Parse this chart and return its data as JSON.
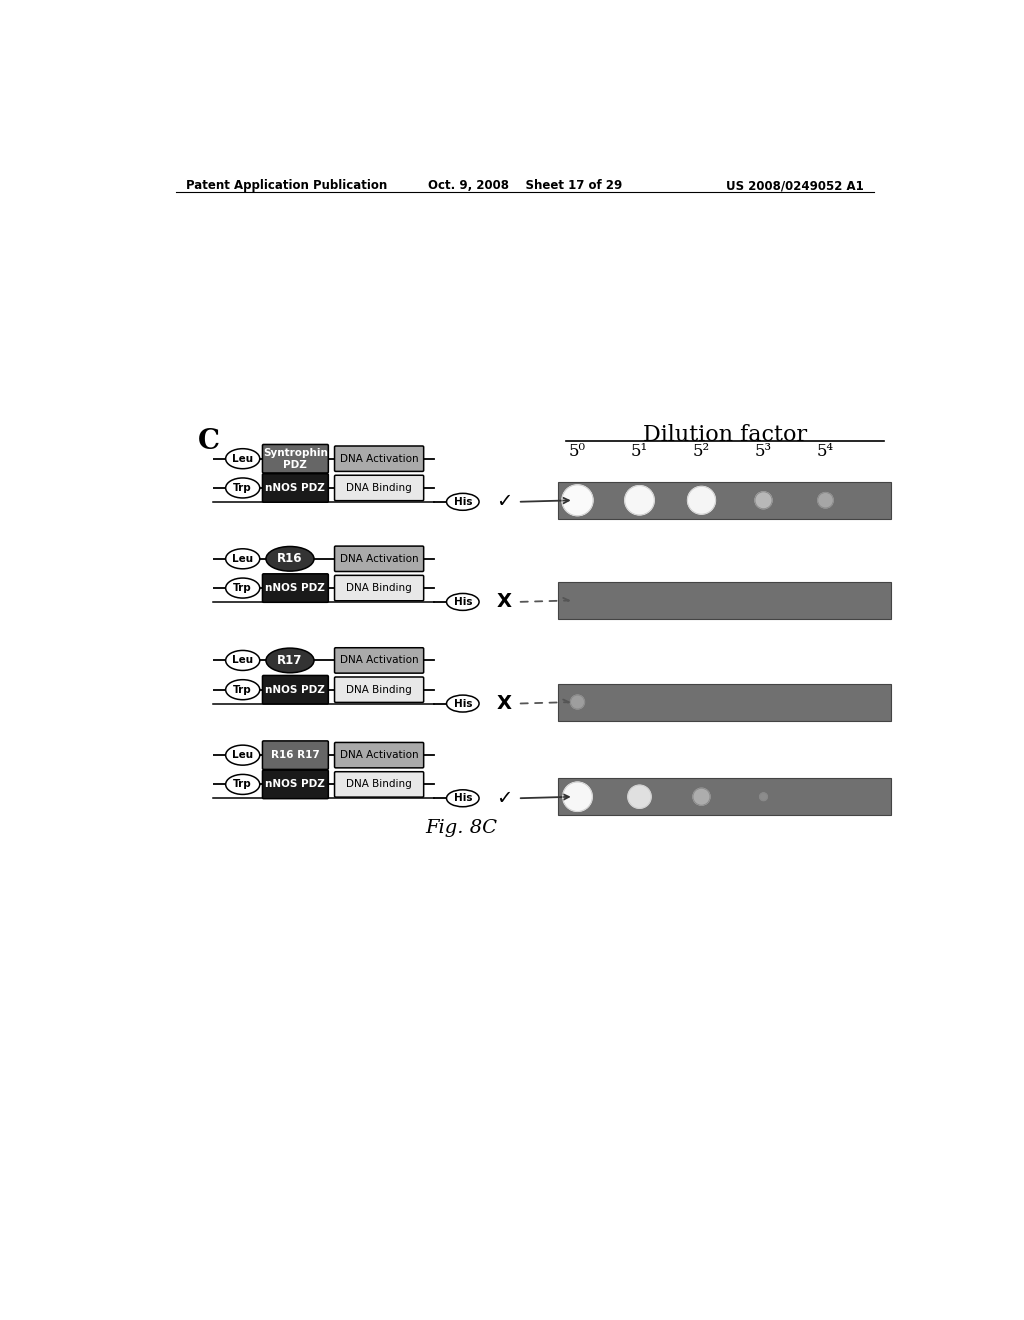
{
  "page_header": {
    "left": "Patent Application Publication",
    "center": "Oct. 9, 2008    Sheet 17 of 29",
    "right": "US 2008/0249052 A1"
  },
  "figure_label": "C",
  "fig_caption": "Fig. 8C",
  "dilution_labels": [
    "5⁰",
    "5¹",
    "5²",
    "5³",
    "5⁴"
  ],
  "rows": [
    {
      "top_oval": "Leu",
      "top_box": "Syntrophin\nPDZ",
      "top_box_color": "#666666",
      "top_box_oval": false,
      "top_dna": "DNA Activation",
      "top_dna_color": "#aaaaaa",
      "bot_oval": "Trp",
      "bot_box": "nNOS PDZ",
      "bot_box_color": "#1a1a1a",
      "bot_dna": "DNA Binding",
      "bot_dna_color": "#e8e8e8",
      "his": "His",
      "result": "✓",
      "dotted": false,
      "strip_idx": 0
    },
    {
      "top_oval": "Leu",
      "top_box": "R16",
      "top_box_color": "#333333",
      "top_box_oval": true,
      "top_dna": "DNA Activation",
      "top_dna_color": "#aaaaaa",
      "bot_oval": "Trp",
      "bot_box": "nNOS PDZ",
      "bot_box_color": "#1a1a1a",
      "bot_dna": "DNA Binding",
      "bot_dna_color": "#e8e8e8",
      "his": "His",
      "result": "X",
      "dotted": true,
      "strip_idx": 1
    },
    {
      "top_oval": "Leu",
      "top_box": "R17",
      "top_box_color": "#333333",
      "top_box_oval": true,
      "top_dna": "DNA Activation",
      "top_dna_color": "#aaaaaa",
      "bot_oval": "Trp",
      "bot_box": "nNOS PDZ",
      "bot_box_color": "#1a1a1a",
      "bot_dna": "DNA Binding",
      "bot_dna_color": "#e8e8e8",
      "his": "His",
      "result": "X",
      "dotted": true,
      "strip_idx": 2
    },
    {
      "top_oval": "Leu",
      "top_box": "R16 R17",
      "top_box_color": "#666666",
      "top_box_oval": false,
      "top_dna": "DNA Activation",
      "top_dna_color": "#aaaaaa",
      "bot_oval": "Trp",
      "bot_box": "nNOS PDZ",
      "bot_box_color": "#1a1a1a",
      "bot_dna": "DNA Binding",
      "bot_dna_color": "#e8e8e8",
      "his": "His",
      "result": "✓",
      "dotted": false,
      "strip_idx": 3
    }
  ],
  "strip_bg": "#707070",
  "strips": [
    {
      "dots": [
        {
          "xi": 0,
          "r": 20,
          "gray": 0.98
        },
        {
          "xi": 1,
          "r": 19,
          "gray": 0.97
        },
        {
          "xi": 2,
          "r": 18,
          "gray": 0.96
        },
        {
          "xi": 3,
          "r": 11,
          "gray": 0.72
        },
        {
          "xi": 4,
          "r": 10,
          "gray": 0.65
        }
      ]
    },
    {
      "dots": []
    },
    {
      "dots": [
        {
          "xi": 0,
          "r": 9,
          "gray": 0.62
        }
      ]
    },
    {
      "dots": [
        {
          "xi": 0,
          "r": 19,
          "gray": 0.97
        },
        {
          "xi": 1,
          "r": 15,
          "gray": 0.88
        },
        {
          "xi": 2,
          "r": 11,
          "gray": 0.68
        },
        {
          "xi": 3,
          "r": 5,
          "gray": 0.55
        }
      ]
    }
  ]
}
